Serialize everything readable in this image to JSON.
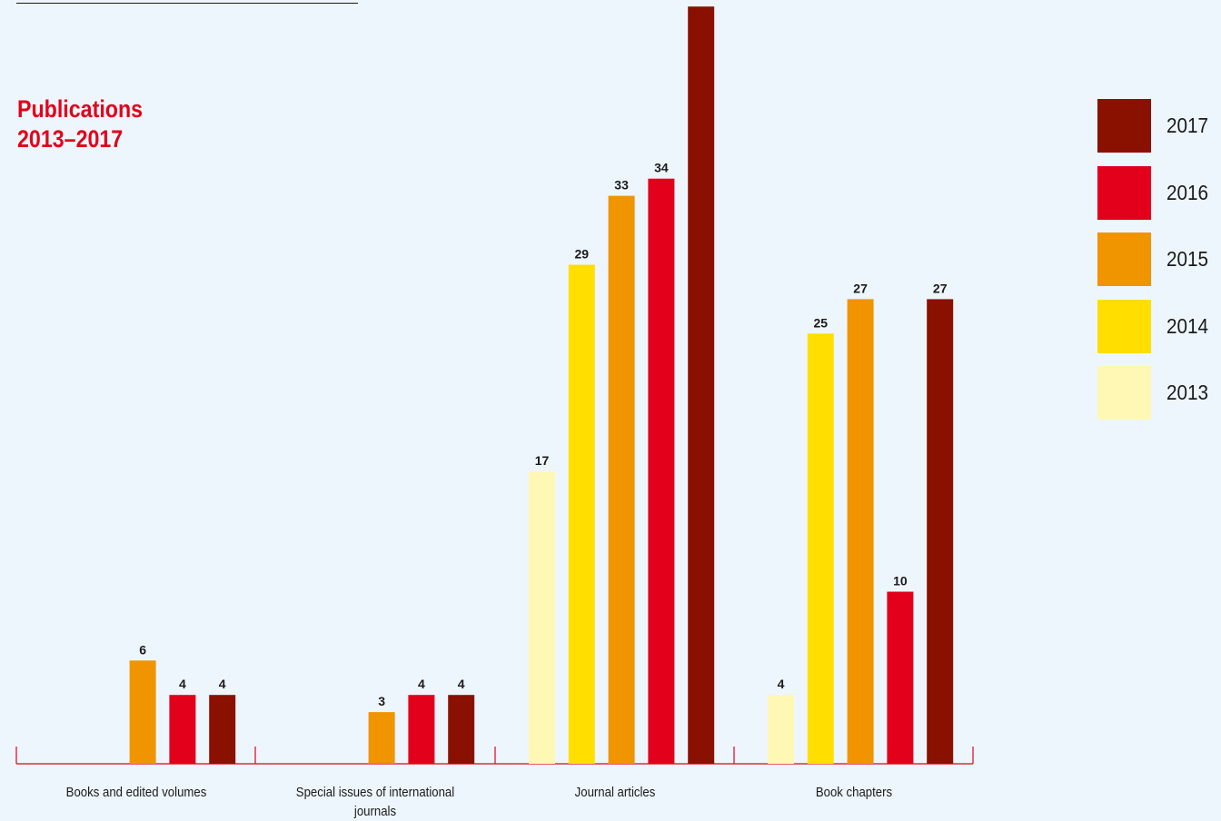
{
  "title": {
    "line1": "Publications",
    "line2": "2013–2017"
  },
  "colors": {
    "2013": "#fff7b4",
    "2014": "#ffde00",
    "2015": "#f09400",
    "2016": "#e2001a",
    "2017": "#8a1100",
    "title": "#e2001a",
    "axis": "#e2001a",
    "background": "#eef6fd"
  },
  "legend": [
    {
      "label": "2017",
      "color": "#8a1100"
    },
    {
      "label": "2016",
      "color": "#e2001a"
    },
    {
      "label": "2015",
      "color": "#f09400"
    },
    {
      "label": "2014",
      "color": "#ffde00"
    },
    {
      "label": "2013",
      "color": "#fff7b4"
    }
  ],
  "chart_data": {
    "type": "bar",
    "title": "Publications 2013–2017",
    "xlabel": "",
    "ylabel": "",
    "ylim": [
      0,
      44
    ],
    "grid": false,
    "legend_position": "right",
    "categories": [
      "Books and edited volumes",
      "Special issues of international journals",
      "Journal articles",
      "Book chapters"
    ],
    "category_label_lines": [
      [
        "Books and edited volumes"
      ],
      [
        "Special issues of international",
        "journals"
      ],
      [
        "Journal articles"
      ],
      [
        "Book chapters"
      ]
    ],
    "series": [
      {
        "name": "2013",
        "color": "#fff7b4",
        "values": [
          null,
          null,
          17,
          4
        ]
      },
      {
        "name": "2014",
        "color": "#ffde00",
        "values": [
          null,
          null,
          29,
          25
        ]
      },
      {
        "name": "2015",
        "color": "#f09400",
        "values": [
          6,
          3,
          33,
          27
        ]
      },
      {
        "name": "2016",
        "color": "#e2001a",
        "values": [
          4,
          4,
          34,
          10
        ]
      },
      {
        "name": "2017",
        "color": "#8a1100",
        "values": [
          4,
          4,
          44,
          27
        ]
      }
    ]
  }
}
